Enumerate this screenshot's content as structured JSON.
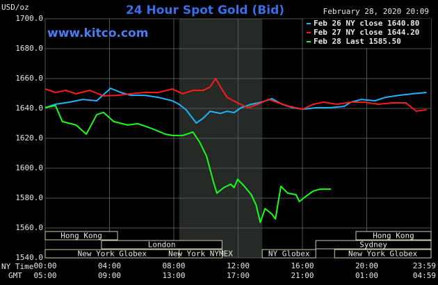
{
  "chart_data": {
    "type": "line",
    "title": "24 Hour Spot Gold (Bid)",
    "timestamp": "February 28, 2020 20:09",
    "watermark": "www.kitco.com",
    "y_label": "USD/oz",
    "x_label": "NY Time",
    "x2_label": "GMT",
    "xlim": [
      0,
      24
    ],
    "xticks": [
      {
        "value": 0,
        "label": "00:00"
      },
      {
        "value": 4,
        "label": "04:00"
      },
      {
        "value": 8,
        "label": "08:00"
      },
      {
        "value": 12,
        "label": "12:00"
      },
      {
        "value": 16,
        "label": "16:00"
      },
      {
        "value": 20,
        "label": "20:00"
      },
      {
        "value": 23.983,
        "label": "23:59"
      }
    ],
    "x2_labels": [
      "05:00",
      "09:00",
      "13:00",
      "17:00",
      "21:00",
      "01:00",
      "04:59"
    ],
    "ylim": [
      1540,
      1700
    ],
    "yticks": [
      {
        "value": 1540,
        "label": "1540.0"
      },
      {
        "value": 1560,
        "label": "1560.0"
      },
      {
        "value": 1580,
        "label": "1580.0"
      },
      {
        "value": 1600,
        "label": "1600.0"
      },
      {
        "value": 1620,
        "label": "1620.0"
      },
      {
        "value": 1640,
        "label": "1640.0"
      },
      {
        "value": 1660,
        "label": "1660.0"
      },
      {
        "value": 1680,
        "label": "1680.0"
      },
      {
        "value": 1700,
        "label": "1700.0"
      }
    ],
    "grid": true,
    "shaded_range": [
      8.333,
      13.5
    ],
    "sessions": [
      [
        {
          "label": "Hong Kong",
          "start": 0,
          "end": 4.5
        },
        {
          "label": "Hong Kong",
          "start": 19.33,
          "end": 24
        }
      ],
      [
        {
          "label": "London",
          "start": 3.5,
          "end": 11
        },
        {
          "label": "Sydney",
          "start": 16.83,
          "end": 24
        }
      ],
      [
        {
          "label": "New York Globex",
          "start": 0,
          "end": 8.333
        },
        {
          "label": "New York NYMEX",
          "start": 8.333,
          "end": 11
        },
        {
          "label": "NY Globex",
          "start": 13.5,
          "end": 16.83
        },
        {
          "label": "New York Globex",
          "start": 18,
          "end": 24
        }
      ]
    ],
    "series": [
      {
        "name": "Feb 26 NY close 1640.80",
        "color": "#1eb4ff",
        "x": [
          0,
          0.64,
          1.5,
          2.35,
          3.21,
          4.06,
          4.7,
          5.34,
          6.2,
          7.05,
          7.91,
          8.33,
          8.76,
          9.4,
          9.83,
          10.26,
          10.9,
          11.32,
          11.75,
          12.18,
          12.82,
          13.46,
          14.1,
          14.74,
          15.38,
          16.03,
          16.88,
          17.74,
          18.59,
          19.02,
          19.66,
          20.51,
          21.15,
          22.01,
          22.86,
          23.72
        ],
        "values": [
          1640.5,
          1642.8,
          1644.2,
          1646.0,
          1645.1,
          1653.5,
          1650.7,
          1648.8,
          1648.8,
          1647.4,
          1645.1,
          1642.8,
          1639.1,
          1630.2,
          1633.5,
          1638.1,
          1636.7,
          1638.1,
          1637.2,
          1640.5,
          1642.8,
          1644.2,
          1646.5,
          1642.8,
          1640.5,
          1639.5,
          1640.5,
          1640.5,
          1641.4,
          1644.2,
          1646.0,
          1645.1,
          1647.4,
          1648.8,
          1649.8,
          1650.7
        ]
      },
      {
        "name": "Feb 27 NY close 1644.20",
        "color": "#ff1a1a",
        "x": [
          0,
          0.64,
          1.28,
          1.92,
          2.78,
          3.63,
          4.49,
          5.34,
          6.2,
          7.05,
          7.91,
          8.55,
          9.19,
          9.83,
          10.26,
          10.6,
          10.9,
          11.32,
          11.97,
          12.61,
          13.25,
          13.89,
          14.53,
          15.17,
          16.03,
          16.67,
          17.31,
          18.16,
          19.02,
          19.87,
          20.73,
          21.58,
          22.44,
          23.08,
          23.72
        ],
        "values": [
          1653.0,
          1650.7,
          1652.1,
          1649.8,
          1652.1,
          1648.4,
          1648.8,
          1649.8,
          1650.7,
          1650.7,
          1653.0,
          1649.8,
          1652.1,
          1652.1,
          1654.4,
          1660.0,
          1654.4,
          1647.4,
          1643.7,
          1640.5,
          1642.8,
          1646.1,
          1643.7,
          1641.4,
          1639.5,
          1642.8,
          1644.2,
          1642.8,
          1644.2,
          1644.2,
          1642.8,
          1643.7,
          1643.7,
          1638.2,
          1639.1
        ]
      },
      {
        "name": "Feb 28 Last 1585.50",
        "color": "#19ff19",
        "x": [
          0,
          0.64,
          1.07,
          1.92,
          2.56,
          3.21,
          3.63,
          4.27,
          5.13,
          5.77,
          6.62,
          7.48,
          7.91,
          8.55,
          9.19,
          9.62,
          10.04,
          10.47,
          10.68,
          11.11,
          11.54,
          11.75,
          11.97,
          12.39,
          12.82,
          13.12,
          13.38,
          13.68,
          14.1,
          14.32,
          14.66,
          15.09,
          15.6,
          15.81,
          16.24,
          16.67,
          17.09,
          17.78
        ],
        "values": [
          1640.5,
          1641.9,
          1631.2,
          1628.9,
          1622.8,
          1635.9,
          1637.3,
          1631.2,
          1628.9,
          1629.8,
          1626.6,
          1622.8,
          1621.9,
          1621.9,
          1624.2,
          1617.2,
          1607.9,
          1590.7,
          1583.3,
          1587.0,
          1589.3,
          1587.0,
          1592.6,
          1587.9,
          1582.3,
          1575.3,
          1563.7,
          1573.0,
          1569.3,
          1566.0,
          1587.9,
          1583.3,
          1582.3,
          1577.7,
          1581.4,
          1584.7,
          1586.0,
          1586.0
        ]
      }
    ]
  }
}
